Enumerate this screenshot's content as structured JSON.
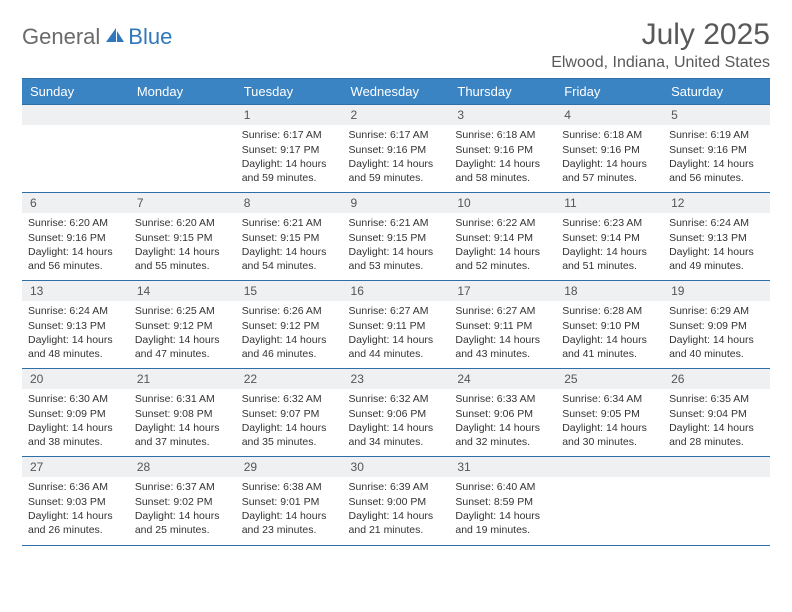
{
  "logo": {
    "part1": "General",
    "part2": "Blue"
  },
  "title": "July 2025",
  "location": "Elwood, Indiana, United States",
  "colors": {
    "header_bg": "#3b84c4",
    "header_text": "#ffffff",
    "rule": "#2f6fa8",
    "daynum_bg": "#eef0f2",
    "logo_gray": "#6a6a6a",
    "logo_blue": "#2f78bd",
    "title_color": "#595959"
  },
  "weekdays": [
    "Sunday",
    "Monday",
    "Tuesday",
    "Wednesday",
    "Thursday",
    "Friday",
    "Saturday"
  ],
  "weeks": [
    [
      null,
      null,
      {
        "n": "1",
        "sr": "Sunrise: 6:17 AM",
        "ss": "Sunset: 9:17 PM",
        "d1": "Daylight: 14 hours",
        "d2": "and 59 minutes."
      },
      {
        "n": "2",
        "sr": "Sunrise: 6:17 AM",
        "ss": "Sunset: 9:16 PM",
        "d1": "Daylight: 14 hours",
        "d2": "and 59 minutes."
      },
      {
        "n": "3",
        "sr": "Sunrise: 6:18 AM",
        "ss": "Sunset: 9:16 PM",
        "d1": "Daylight: 14 hours",
        "d2": "and 58 minutes."
      },
      {
        "n": "4",
        "sr": "Sunrise: 6:18 AM",
        "ss": "Sunset: 9:16 PM",
        "d1": "Daylight: 14 hours",
        "d2": "and 57 minutes."
      },
      {
        "n": "5",
        "sr": "Sunrise: 6:19 AM",
        "ss": "Sunset: 9:16 PM",
        "d1": "Daylight: 14 hours",
        "d2": "and 56 minutes."
      }
    ],
    [
      {
        "n": "6",
        "sr": "Sunrise: 6:20 AM",
        "ss": "Sunset: 9:16 PM",
        "d1": "Daylight: 14 hours",
        "d2": "and 56 minutes."
      },
      {
        "n": "7",
        "sr": "Sunrise: 6:20 AM",
        "ss": "Sunset: 9:15 PM",
        "d1": "Daylight: 14 hours",
        "d2": "and 55 minutes."
      },
      {
        "n": "8",
        "sr": "Sunrise: 6:21 AM",
        "ss": "Sunset: 9:15 PM",
        "d1": "Daylight: 14 hours",
        "d2": "and 54 minutes."
      },
      {
        "n": "9",
        "sr": "Sunrise: 6:21 AM",
        "ss": "Sunset: 9:15 PM",
        "d1": "Daylight: 14 hours",
        "d2": "and 53 minutes."
      },
      {
        "n": "10",
        "sr": "Sunrise: 6:22 AM",
        "ss": "Sunset: 9:14 PM",
        "d1": "Daylight: 14 hours",
        "d2": "and 52 minutes."
      },
      {
        "n": "11",
        "sr": "Sunrise: 6:23 AM",
        "ss": "Sunset: 9:14 PM",
        "d1": "Daylight: 14 hours",
        "d2": "and 51 minutes."
      },
      {
        "n": "12",
        "sr": "Sunrise: 6:24 AM",
        "ss": "Sunset: 9:13 PM",
        "d1": "Daylight: 14 hours",
        "d2": "and 49 minutes."
      }
    ],
    [
      {
        "n": "13",
        "sr": "Sunrise: 6:24 AM",
        "ss": "Sunset: 9:13 PM",
        "d1": "Daylight: 14 hours",
        "d2": "and 48 minutes."
      },
      {
        "n": "14",
        "sr": "Sunrise: 6:25 AM",
        "ss": "Sunset: 9:12 PM",
        "d1": "Daylight: 14 hours",
        "d2": "and 47 minutes."
      },
      {
        "n": "15",
        "sr": "Sunrise: 6:26 AM",
        "ss": "Sunset: 9:12 PM",
        "d1": "Daylight: 14 hours",
        "d2": "and 46 minutes."
      },
      {
        "n": "16",
        "sr": "Sunrise: 6:27 AM",
        "ss": "Sunset: 9:11 PM",
        "d1": "Daylight: 14 hours",
        "d2": "and 44 minutes."
      },
      {
        "n": "17",
        "sr": "Sunrise: 6:27 AM",
        "ss": "Sunset: 9:11 PM",
        "d1": "Daylight: 14 hours",
        "d2": "and 43 minutes."
      },
      {
        "n": "18",
        "sr": "Sunrise: 6:28 AM",
        "ss": "Sunset: 9:10 PM",
        "d1": "Daylight: 14 hours",
        "d2": "and 41 minutes."
      },
      {
        "n": "19",
        "sr": "Sunrise: 6:29 AM",
        "ss": "Sunset: 9:09 PM",
        "d1": "Daylight: 14 hours",
        "d2": "and 40 minutes."
      }
    ],
    [
      {
        "n": "20",
        "sr": "Sunrise: 6:30 AM",
        "ss": "Sunset: 9:09 PM",
        "d1": "Daylight: 14 hours",
        "d2": "and 38 minutes."
      },
      {
        "n": "21",
        "sr": "Sunrise: 6:31 AM",
        "ss": "Sunset: 9:08 PM",
        "d1": "Daylight: 14 hours",
        "d2": "and 37 minutes."
      },
      {
        "n": "22",
        "sr": "Sunrise: 6:32 AM",
        "ss": "Sunset: 9:07 PM",
        "d1": "Daylight: 14 hours",
        "d2": "and 35 minutes."
      },
      {
        "n": "23",
        "sr": "Sunrise: 6:32 AM",
        "ss": "Sunset: 9:06 PM",
        "d1": "Daylight: 14 hours",
        "d2": "and 34 minutes."
      },
      {
        "n": "24",
        "sr": "Sunrise: 6:33 AM",
        "ss": "Sunset: 9:06 PM",
        "d1": "Daylight: 14 hours",
        "d2": "and 32 minutes."
      },
      {
        "n": "25",
        "sr": "Sunrise: 6:34 AM",
        "ss": "Sunset: 9:05 PM",
        "d1": "Daylight: 14 hours",
        "d2": "and 30 minutes."
      },
      {
        "n": "26",
        "sr": "Sunrise: 6:35 AM",
        "ss": "Sunset: 9:04 PM",
        "d1": "Daylight: 14 hours",
        "d2": "and 28 minutes."
      }
    ],
    [
      {
        "n": "27",
        "sr": "Sunrise: 6:36 AM",
        "ss": "Sunset: 9:03 PM",
        "d1": "Daylight: 14 hours",
        "d2": "and 26 minutes."
      },
      {
        "n": "28",
        "sr": "Sunrise: 6:37 AM",
        "ss": "Sunset: 9:02 PM",
        "d1": "Daylight: 14 hours",
        "d2": "and 25 minutes."
      },
      {
        "n": "29",
        "sr": "Sunrise: 6:38 AM",
        "ss": "Sunset: 9:01 PM",
        "d1": "Daylight: 14 hours",
        "d2": "and 23 minutes."
      },
      {
        "n": "30",
        "sr": "Sunrise: 6:39 AM",
        "ss": "Sunset: 9:00 PM",
        "d1": "Daylight: 14 hours",
        "d2": "and 21 minutes."
      },
      {
        "n": "31",
        "sr": "Sunrise: 6:40 AM",
        "ss": "Sunset: 8:59 PM",
        "d1": "Daylight: 14 hours",
        "d2": "and 19 minutes."
      },
      null,
      null
    ]
  ]
}
